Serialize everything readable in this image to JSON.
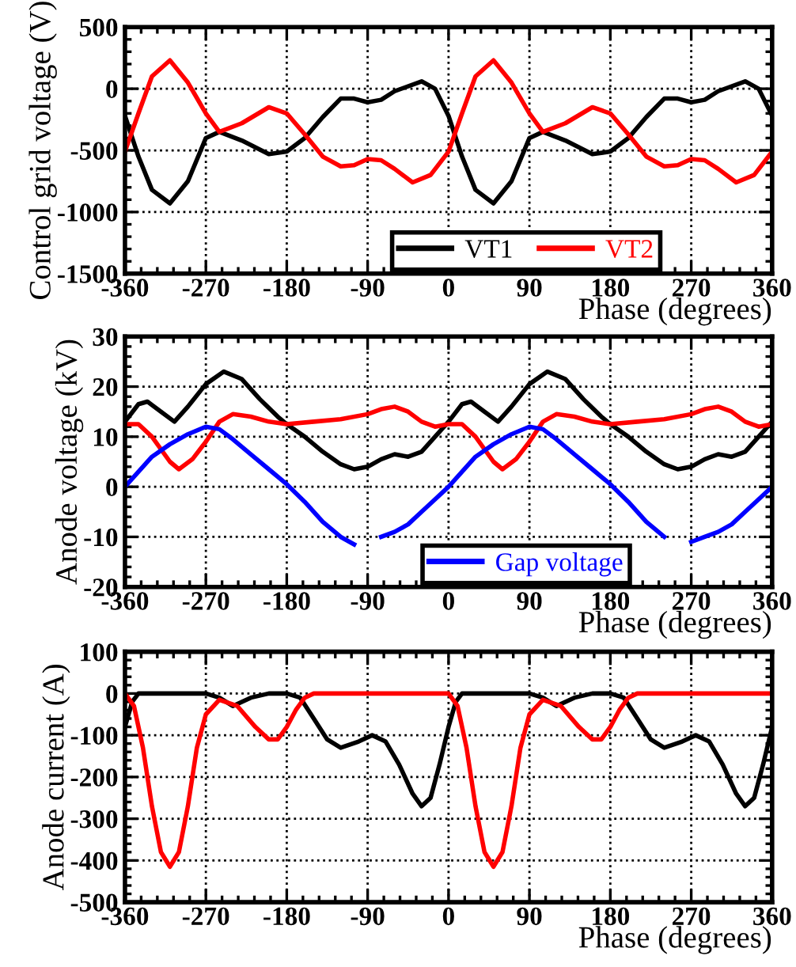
{
  "chart_data": [
    {
      "type": "line",
      "ylabel": "Control grid voltage (V)",
      "xlabel": "Phase (degrees)",
      "xlim": [
        -360,
        360
      ],
      "xticks": [
        -360,
        -270,
        -180,
        -90,
        0,
        90,
        180,
        270,
        360
      ],
      "ylim": [
        -1500,
        500
      ],
      "yticks": [
        -1500,
        -1000,
        -500,
        0,
        500
      ],
      "grid": true,
      "legend": "bottom",
      "marker": "none",
      "line_style": "solid",
      "series": [
        {
          "name": "VT1",
          "color": "#000000",
          "x": [
            -360,
            -345,
            -330,
            -310,
            -290,
            -270,
            -255,
            -230,
            -200,
            -180,
            -160,
            -140,
            -120,
            -105,
            -90,
            -75,
            -60,
            -30,
            -15,
            0,
            15,
            30,
            50,
            70,
            90,
            105,
            130,
            160,
            180,
            200,
            220,
            240,
            255,
            270,
            285,
            300,
            330,
            345,
            360
          ],
          "values": [
            -220,
            -550,
            -820,
            -930,
            -750,
            -400,
            -350,
            -420,
            -530,
            -510,
            -400,
            -230,
            -80,
            -80,
            -110,
            -90,
            -20,
            60,
            0,
            -220,
            -550,
            -820,
            -930,
            -750,
            -400,
            -350,
            -420,
            -530,
            -510,
            -400,
            -230,
            -80,
            -80,
            -110,
            -90,
            -20,
            60,
            0,
            -220
          ]
        },
        {
          "name": "VT2",
          "color": "#ff0000",
          "x": [
            -360,
            -345,
            -330,
            -310,
            -290,
            -270,
            -255,
            -230,
            -200,
            -180,
            -160,
            -140,
            -120,
            -105,
            -90,
            -75,
            -60,
            -40,
            -20,
            0,
            15,
            30,
            50,
            70,
            90,
            105,
            130,
            160,
            180,
            200,
            220,
            240,
            255,
            270,
            285,
            300,
            320,
            340,
            360
          ],
          "values": [
            -510,
            -200,
            100,
            230,
            50,
            -200,
            -350,
            -280,
            -150,
            -200,
            -370,
            -550,
            -630,
            -620,
            -570,
            -580,
            -650,
            -760,
            -700,
            -510,
            -200,
            100,
            230,
            50,
            -200,
            -350,
            -280,
            -150,
            -200,
            -370,
            -550,
            -630,
            -620,
            -570,
            -580,
            -650,
            -760,
            -700,
            -510
          ]
        }
      ]
    },
    {
      "type": "line",
      "ylabel": "Anode voltage (kV)",
      "xlabel": "Phase (degrees)",
      "xlim": [
        -360,
        360
      ],
      "xticks": [
        -360,
        -270,
        -180,
        -90,
        0,
        90,
        180,
        270,
        360
      ],
      "ylim": [
        -20,
        30
      ],
      "yticks": [
        -20,
        -10,
        0,
        10,
        20,
        30
      ],
      "grid": true,
      "legend": "bottom",
      "marker": "none",
      "line_style": "solid",
      "series": [
        {
          "color": "#000000",
          "x": [
            -360,
            -345,
            -335,
            -320,
            -305,
            -290,
            -270,
            -250,
            -230,
            -210,
            -190,
            -180,
            -160,
            -140,
            -120,
            -105,
            -90,
            -75,
            -60,
            -45,
            -30,
            -15,
            0,
            15,
            25,
            40,
            55,
            70,
            90,
            110,
            130,
            150,
            170,
            180,
            200,
            220,
            240,
            255,
            270,
            285,
            300,
            315,
            330,
            345,
            360
          ],
          "values": [
            13,
            16.5,
            17,
            15,
            13,
            16,
            20.5,
            23,
            21.5,
            17.5,
            14,
            12.5,
            10,
            7,
            4.5,
            3.5,
            4,
            5.5,
            6.5,
            6,
            7,
            10,
            13,
            16.5,
            17,
            15,
            13,
            16,
            20.5,
            23,
            21.5,
            17.5,
            14,
            12.5,
            10,
            7,
            4.5,
            3.5,
            4,
            5.5,
            6.5,
            6,
            7,
            10,
            13
          ]
        },
        {
          "color": "#ff0000",
          "x": [
            -360,
            -345,
            -330,
            -310,
            -300,
            -285,
            -270,
            -255,
            -240,
            -220,
            -200,
            -180,
            -150,
            -120,
            -90,
            -75,
            -60,
            -45,
            -30,
            -15,
            0,
            15,
            30,
            50,
            60,
            75,
            90,
            105,
            120,
            140,
            160,
            180,
            210,
            240,
            270,
            285,
            300,
            315,
            330,
            345,
            360
          ],
          "values": [
            12.5,
            12.5,
            10,
            5,
            3.5,
            5.5,
            9,
            13,
            14.5,
            14,
            13,
            12.5,
            13,
            13.5,
            14.5,
            15.5,
            16,
            15,
            13,
            12,
            12.5,
            12.5,
            10,
            5,
            3.5,
            5.5,
            9,
            13,
            14.5,
            14,
            13,
            12.5,
            13,
            13.5,
            14.5,
            15.5,
            16,
            15,
            13,
            12,
            12.5
          ]
        },
        {
          "name": "Gap voltage",
          "color": "#0000ff",
          "x": [
            -360,
            -345,
            -330,
            -310,
            -290,
            -270,
            -255,
            -240,
            -220,
            -200,
            -180,
            -160,
            -140,
            -120,
            -105,
            -90,
            -75,
            -60,
            -45,
            -30,
            -15,
            0,
            15,
            30,
            50,
            70,
            90,
            105,
            120,
            140,
            160,
            180,
            200,
            220,
            240,
            255,
            270,
            285,
            300,
            315,
            330,
            345,
            360
          ],
          "values": [
            0,
            3,
            6,
            8.5,
            10.5,
            12,
            11.5,
            9.5,
            6.5,
            3.5,
            0.5,
            -3,
            -7,
            -10,
            -11.5,
            null,
            -10,
            -9,
            -7.5,
            -5,
            -2.5,
            0,
            3,
            6,
            8.5,
            10.5,
            12,
            11.5,
            9.5,
            6.5,
            3.5,
            0.5,
            -3,
            -7,
            -10,
            null,
            -11,
            -10,
            -9,
            -7.5,
            -5,
            -2.5,
            0
          ]
        }
      ]
    },
    {
      "type": "line",
      "ylabel": "Anode current (A)",
      "xlabel": "Phase (degrees)",
      "xlim": [
        -360,
        360
      ],
      "xticks": [
        -360,
        -270,
        -180,
        -90,
        0,
        90,
        180,
        270,
        360
      ],
      "ylim": [
        -500,
        100
      ],
      "yticks": [
        -500,
        -400,
        -300,
        -200,
        -100,
        0,
        100
      ],
      "grid": true,
      "marker": "none",
      "line_style": "solid",
      "series": [
        {
          "color": "#000000",
          "x": [
            -360,
            -352,
            -345,
            -270,
            -255,
            -240,
            -220,
            -200,
            -180,
            -165,
            -150,
            -135,
            -120,
            -100,
            -85,
            -70,
            -55,
            -40,
            -30,
            -20,
            -10,
            0,
            8,
            15,
            90,
            105,
            120,
            140,
            160,
            180,
            195,
            210,
            225,
            240,
            260,
            275,
            290,
            305,
            320,
            330,
            340,
            350,
            360
          ],
          "values": [
            -80,
            -20,
            0,
            0,
            -10,
            -30,
            -10,
            0,
            0,
            -10,
            -60,
            -110,
            -130,
            -115,
            -100,
            -115,
            -170,
            -240,
            -270,
            -250,
            -170,
            -80,
            -20,
            0,
            0,
            -10,
            -30,
            -10,
            0,
            0,
            -10,
            -60,
            -110,
            -130,
            -115,
            -100,
            -115,
            -170,
            -240,
            -270,
            -250,
            -170,
            -80
          ]
        },
        {
          "color": "#ff0000",
          "x": [
            -360,
            -350,
            -340,
            -330,
            -320,
            -310,
            -300,
            -290,
            -280,
            -270,
            -255,
            -235,
            -215,
            -200,
            -190,
            -180,
            -170,
            -160,
            -150,
            0,
            10,
            20,
            30,
            40,
            50,
            60,
            70,
            80,
            90,
            105,
            125,
            145,
            160,
            170,
            180,
            190,
            200,
            210,
            360
          ],
          "values": [
            0,
            -30,
            -130,
            -270,
            -380,
            -415,
            -380,
            -270,
            -130,
            -50,
            -15,
            -30,
            -80,
            -110,
            -110,
            -80,
            -40,
            -10,
            0,
            0,
            -30,
            -130,
            -270,
            -380,
            -415,
            -380,
            -270,
            -130,
            -50,
            -15,
            -30,
            -80,
            -110,
            -110,
            -80,
            -40,
            -10,
            0,
            0
          ]
        }
      ]
    }
  ]
}
